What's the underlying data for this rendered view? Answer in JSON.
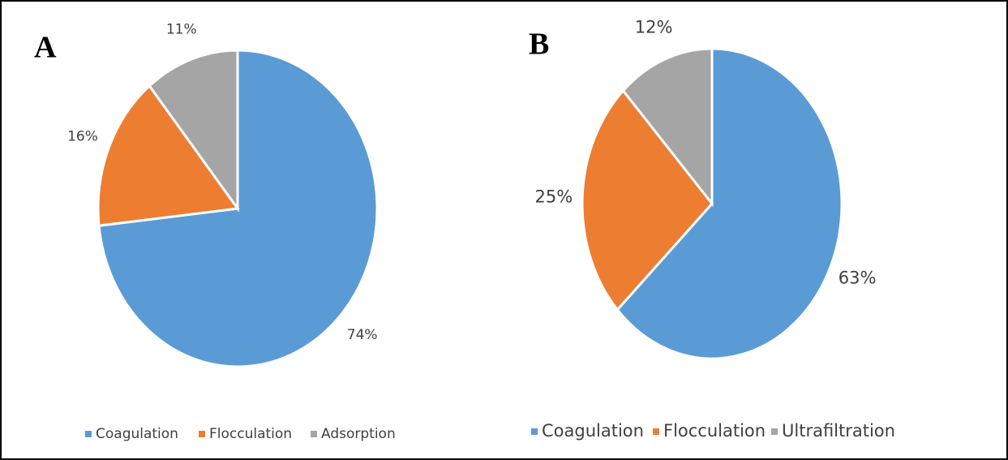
{
  "chart_data": [
    {
      "type": "pie",
      "panel": "A",
      "categories": [
        "Coagulation",
        "Flocculation",
        "Adsorption"
      ],
      "values": [
        74,
        16,
        11
      ],
      "value_labels": [
        "74%",
        "16%",
        "11%"
      ],
      "colors": [
        "#5b9bd5",
        "#ed7d31",
        "#a5a5a5"
      ]
    },
    {
      "type": "pie",
      "panel": "B",
      "categories": [
        "Coagulation",
        "Flocculation",
        "Ultrafiltration"
      ],
      "values": [
        63,
        25,
        12
      ],
      "value_labels": [
        "63%",
        "25%",
        "12%"
      ],
      "colors": [
        "#5b9bd5",
        "#ed7d31",
        "#a5a5a5"
      ]
    }
  ]
}
